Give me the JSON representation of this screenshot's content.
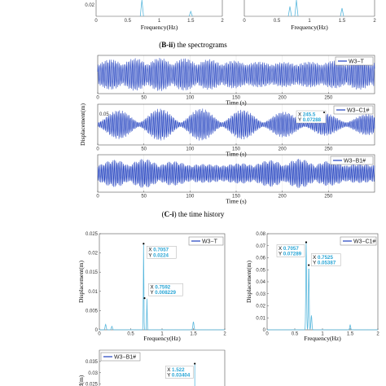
{
  "colors": {
    "series": "#1f3fbf",
    "spectrum": "#5ab8dd",
    "datatip": "#2aa6d6",
    "axis": "#333333"
  },
  "captions": {
    "b_ii": {
      "label": "B-ii",
      "text": " the spectrograms"
    },
    "c_i": {
      "label": "C-i",
      "text": " the time history"
    }
  },
  "chart_data": [
    {
      "id": "top-left-spectrum",
      "type": "line",
      "xlabel": "Frequency(Hz)",
      "xticks": [
        "0",
        "0.5",
        "1",
        "1.5",
        "2"
      ],
      "xlim": [
        0,
        2
      ],
      "yticks": [
        "0.02"
      ],
      "peaks_x": [
        0.7,
        1.5
      ]
    },
    {
      "id": "top-right-spectrum",
      "type": "line",
      "xlabel": "Frequency(Hz)",
      "xticks": [
        "0",
        "0.5",
        "1",
        "1.5",
        "2"
      ],
      "xlim": [
        0,
        2
      ],
      "yticks": [],
      "peaks_x": [
        0.7,
        0.8,
        1.5
      ]
    },
    {
      "id": "time-w3-t",
      "type": "line",
      "legend": "W3−T",
      "xlabel": "Time (s)",
      "xticks": [
        "0",
        "50",
        "100",
        "150",
        "200",
        "250"
      ],
      "xlim": [
        0,
        300
      ],
      "yticks": []
    },
    {
      "id": "time-w3-c1",
      "type": "line",
      "legend": "W3−C1#",
      "xlabel": "Time (s)",
      "ylabel": "Displacement(m)",
      "xticks": [
        "0",
        "50",
        "100",
        "150",
        "200",
        "250"
      ],
      "xlim": [
        0,
        300
      ],
      "yticks": [
        "0.05"
      ],
      "datatip": {
        "x_label": "X 245.5",
        "y_label": "Y 0.07288"
      }
    },
    {
      "id": "time-w3-b1",
      "type": "line",
      "legend": "W3−B1#",
      "xlabel": "Time (s)",
      "xticks": [
        "0",
        "50",
        "100",
        "150",
        "200",
        "250"
      ],
      "xlim": [
        0,
        300
      ],
      "yticks": []
    },
    {
      "id": "spectrum-w3-t",
      "type": "line",
      "legend": "W3−T",
      "xlabel": "Frequency(Hz)",
      "ylabel": "Displacement(m)",
      "xticks": [
        "0",
        "0.5",
        "1",
        "1.5",
        "2"
      ],
      "xlim": [
        0,
        2
      ],
      "yticks": [
        "0",
        "0.005",
        "0.01",
        "0.015",
        "0.02",
        "0.025"
      ],
      "ylim": [
        0,
        0.025
      ],
      "peaks": [
        {
          "x": 0.1,
          "y": 0.0014
        },
        {
          "x": 0.2,
          "y": 0.0009
        },
        {
          "x": 0.7057,
          "y": 0.0224
        },
        {
          "x": 0.7592,
          "y": 0.008229
        },
        {
          "x": 1.5,
          "y": 0.0021
        }
      ],
      "datatips": [
        {
          "x": 0.7057,
          "y": 0.0224,
          "x_label": "X 0.7057",
          "y_label": "Y 0.0224"
        },
        {
          "x": 0.7592,
          "y": 0.008229,
          "x_label": "X 0.7592",
          "y_label": "Y 0.008229"
        }
      ]
    },
    {
      "id": "spectrum-w3-c1",
      "type": "line",
      "legend": "W3−C1#",
      "xlabel": "Frequency(Hz)",
      "ylabel": "Displacement(m)",
      "xticks": [
        "0",
        "0.5",
        "1",
        "1.5",
        "2"
      ],
      "xlim": [
        0,
        2
      ],
      "yticks": [
        "0",
        "0.01",
        "0.02",
        "0.03",
        "0.04",
        "0.05",
        "0.06",
        "0.07",
        "0.08"
      ],
      "ylim": [
        0,
        0.08
      ],
      "peaks": [
        {
          "x": 0.7057,
          "y": 0.07289
        },
        {
          "x": 0.7525,
          "y": 0.05387
        },
        {
          "x": 0.8,
          "y": 0.012
        },
        {
          "x": 1.5,
          "y": 0.004
        }
      ],
      "datatips": [
        {
          "x": 0.7057,
          "y": 0.07289,
          "x_label": "X 0.7057",
          "y_label": "Y 0.07289"
        },
        {
          "x": 0.7525,
          "y": 0.05387,
          "x_label": "X 0.7525",
          "y_label": "Y 0.05387"
        }
      ]
    },
    {
      "id": "spectrum-w3-b1",
      "type": "line",
      "legend": "W3−B1#",
      "ylabel": "d(m)",
      "yticks": [
        "0.035",
        "0.03",
        "0.025"
      ],
      "ylim": [
        0.022,
        0.04
      ],
      "xlim": [
        0,
        2
      ],
      "datatips": [
        {
          "x": 1.522,
          "y": 0.03404,
          "x_label": "X 1.522",
          "y_label": "Y 0.03404"
        }
      ]
    }
  ]
}
